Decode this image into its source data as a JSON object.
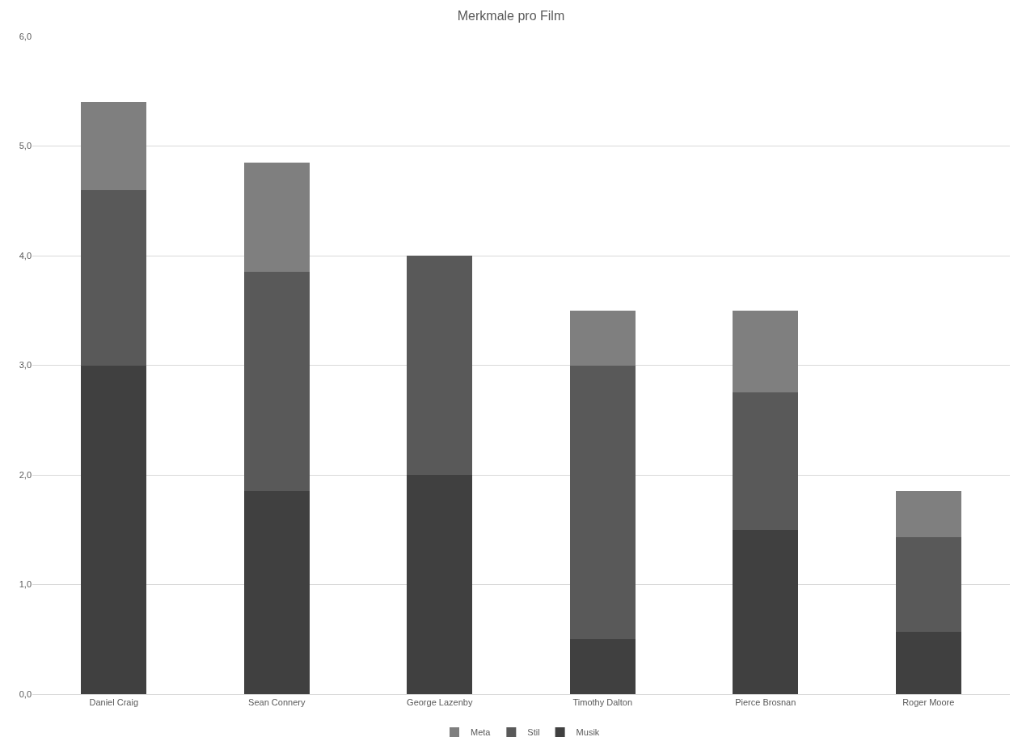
{
  "chart_data": {
    "type": "bar",
    "title": "Merkmale pro Film",
    "stacked": true,
    "categories": [
      "Daniel Craig",
      "Sean Connery",
      "George Lazenby",
      "Timothy Dalton",
      "Pierce Brosnan",
      "Roger Moore"
    ],
    "series": [
      {
        "name": "Musik",
        "color": "#404040",
        "values": [
          3.0,
          1.85,
          2.0,
          0.5,
          1.5,
          0.57
        ]
      },
      {
        "name": "Stil",
        "color": "#595959",
        "values": [
          1.6,
          2.0,
          2.0,
          2.5,
          1.25,
          0.86
        ]
      },
      {
        "name": "Meta",
        "color": "#7f7f7f",
        "values": [
          0.8,
          1.0,
          0,
          0.5,
          0.75,
          0.42
        ]
      }
    ],
    "ylim": [
      0,
      6
    ],
    "yticks": [
      {
        "value": 0,
        "label": "0,0"
      },
      {
        "value": 1,
        "label": "1,0"
      },
      {
        "value": 2,
        "label": "2,0"
      },
      {
        "value": 3,
        "label": "3,0"
      },
      {
        "value": 4,
        "label": "4,0"
      },
      {
        "value": 5,
        "label": "5,0"
      },
      {
        "value": 6,
        "label": "6,0"
      }
    ],
    "grid": "y",
    "legend": "bottom"
  }
}
